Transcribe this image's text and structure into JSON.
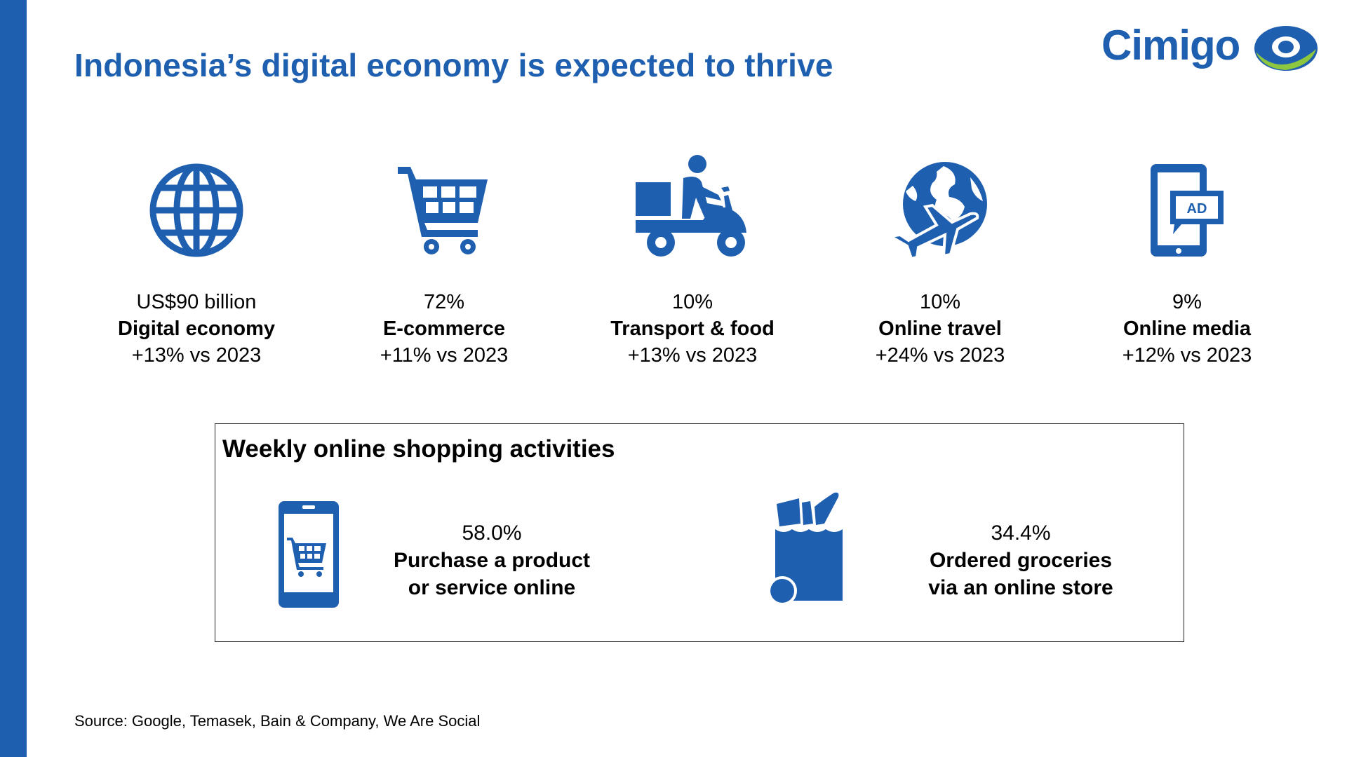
{
  "slide": {
    "title": "Indonesia’s digital economy is expected to thrive",
    "source": "Source: Google, Temasek, Bain & Company, We Are Social",
    "accent_color": "#1f5faf",
    "logo_green": "#8dc63f"
  },
  "logo": {
    "text": "Cimigo",
    "icon": "eye-icon"
  },
  "stats": [
    {
      "icon": "globe-icon",
      "value": "US$90 billion",
      "label": "Digital economy",
      "change": "+13% vs 2023"
    },
    {
      "icon": "shopping-cart-icon",
      "value": "72%",
      "label": "E-commerce",
      "change": "+11% vs 2023"
    },
    {
      "icon": "delivery-scooter-icon",
      "value": "10%",
      "label": "Transport & food",
      "change": "+13% vs 2023"
    },
    {
      "icon": "globe-airplane-icon",
      "value": "10%",
      "label": "Online travel",
      "change": "+24% vs 2023"
    },
    {
      "icon": "mobile-ad-icon",
      "value": "9%",
      "label": "Online media",
      "change": "+12% vs 2023"
    }
  ],
  "weekly": {
    "title": "Weekly online shopping activities",
    "items": [
      {
        "icon": "phone-cart-icon",
        "percent": "58.0%",
        "label_line1": "Purchase a product",
        "label_line2": "or service online"
      },
      {
        "icon": "grocery-bag-icon",
        "percent": "34.4%",
        "label_line1": "Ordered groceries",
        "label_line2": "via an online store"
      }
    ]
  }
}
